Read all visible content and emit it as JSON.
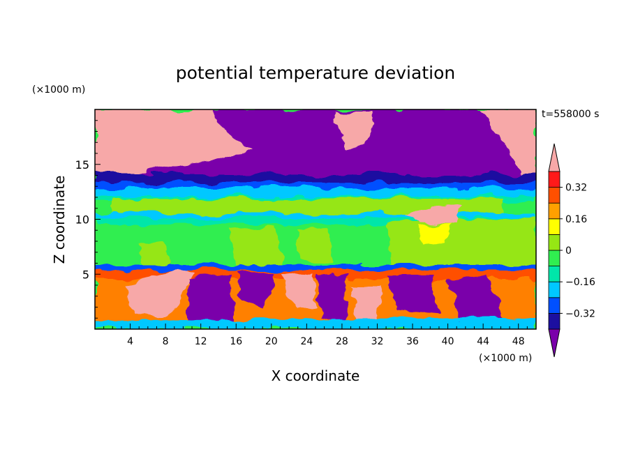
{
  "chart_data": {
    "type": "heatmap",
    "title": "potential temperature deviation",
    "xlabel": "X coordinate",
    "ylabel": "Z coordinate",
    "x_unit": "(×1000 m)",
    "y_unit": "(×1000 m)",
    "time_label": "t=558000 s",
    "xlim": [
      0,
      50
    ],
    "ylim": [
      0,
      20
    ],
    "x_ticks": [
      4,
      8,
      12,
      16,
      20,
      24,
      28,
      32,
      36,
      40,
      44,
      48
    ],
    "y_ticks": [
      5,
      10,
      15
    ],
    "legend_placement": "right",
    "colorbar": {
      "levels": [
        -0.4,
        -0.32,
        -0.24,
        -0.16,
        -0.08,
        0,
        0.08,
        0.16,
        0.24,
        0.32,
        0.4
      ],
      "labeled_levels": [
        "0.32",
        "0.16",
        "0",
        "−0.16",
        "−0.32"
      ],
      "colors_low_to_high": [
        "#7a00aa",
        "#1c0fa0",
        "#0050ff",
        "#00c8ff",
        "#00e6aa",
        "#30ee50",
        "#96e614",
        "#ffff00",
        "#ffa000",
        "#ff5000",
        "#ff1a1a",
        "#f7a8a8"
      ]
    },
    "grid": false
  }
}
